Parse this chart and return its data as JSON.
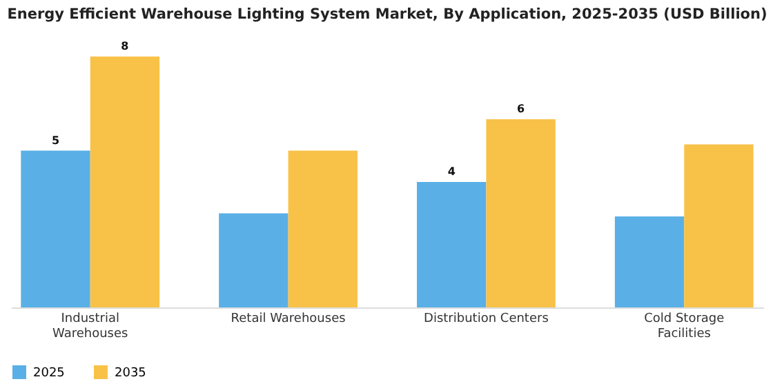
{
  "chart_data": {
    "type": "bar",
    "title": "Energy Efficient Warehouse Lighting System Market, By Application, 2025-2035 (USD Billion)",
    "categories": [
      "Industrial\nWarehouses",
      "Retail Warehouses",
      "Distribution Centers",
      "Cold Storage\nFacilities"
    ],
    "series": [
      {
        "name": "2025",
        "color": "#5ab0e6",
        "values": [
          5,
          3.0,
          4,
          2.9
        ],
        "value_labels": [
          "5",
          null,
          "4",
          null
        ]
      },
      {
        "name": "2035",
        "color": "#f8c249",
        "values": [
          8,
          5.0,
          6,
          5.2
        ],
        "value_labels": [
          "8",
          null,
          "6",
          null
        ]
      }
    ],
    "legend": "bottom",
    "grid": false
  }
}
